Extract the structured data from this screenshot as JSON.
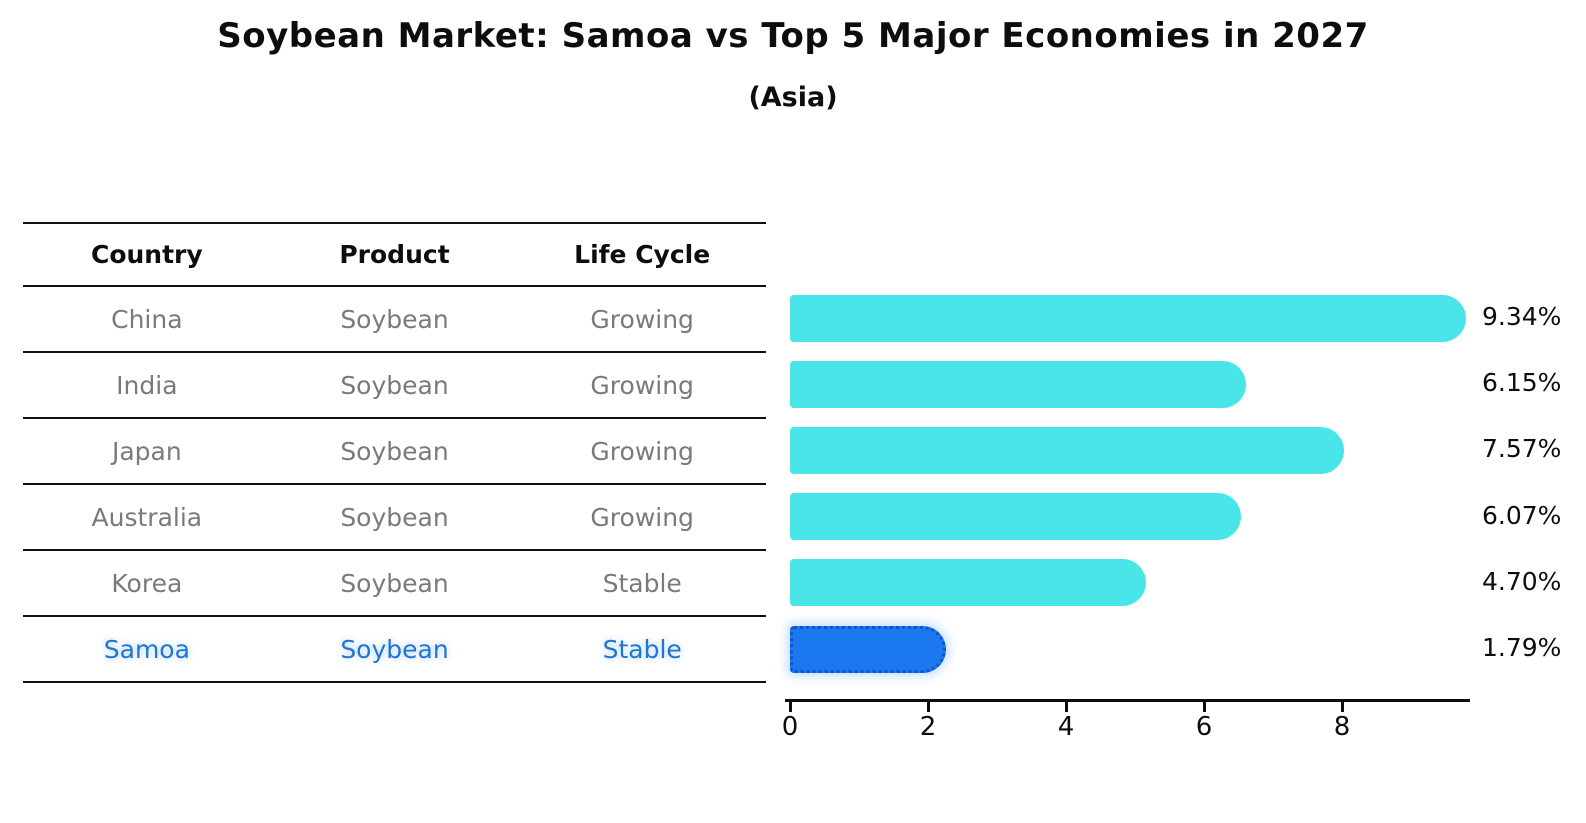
{
  "title": "Soybean Market: Samoa vs Top 5 Major Economies in 2027",
  "subtitle": "(Asia)",
  "table": {
    "headers": [
      "Country",
      "Product",
      "Life Cycle"
    ],
    "rows": [
      {
        "country": "China",
        "product": "Soybean",
        "life_cycle": "Growing",
        "highlight": false
      },
      {
        "country": "India",
        "product": "Soybean",
        "life_cycle": "Growing",
        "highlight": false
      },
      {
        "country": "Japan",
        "product": "Soybean",
        "life_cycle": "Growing",
        "highlight": false
      },
      {
        "country": "Australia",
        "product": "Soybean",
        "life_cycle": "Growing",
        "highlight": false
      },
      {
        "country": "Korea",
        "product": "Soybean",
        "life_cycle": "Stable",
        "highlight": false
      },
      {
        "country": "Samoa",
        "product": "Soybean",
        "life_cycle": "Stable",
        "highlight": true
      }
    ]
  },
  "chart_data": {
    "type": "bar",
    "orientation": "horizontal",
    "categories": [
      "China",
      "India",
      "Japan",
      "Australia",
      "Korea",
      "Samoa"
    ],
    "values": [
      9.34,
      6.15,
      7.57,
      6.07,
      4.7,
      1.79
    ],
    "value_labels": [
      "9.34%",
      "6.15%",
      "7.57%",
      "6.07%",
      "4.70%",
      "1.79%"
    ],
    "xticks": [
      0,
      2,
      4,
      6,
      8
    ],
    "xlim": [
      0,
      9.8
    ],
    "grid": false,
    "legend": null,
    "bar_color": "#4ae5e8",
    "highlight_bar_color": "#1b78ee",
    "highlight_index": 5
  },
  "colors": {
    "title_text": "#0d0d0d",
    "table_text": "#7a7a7a",
    "highlight_text": "#2277cc",
    "axis": "#0d0d0d"
  }
}
